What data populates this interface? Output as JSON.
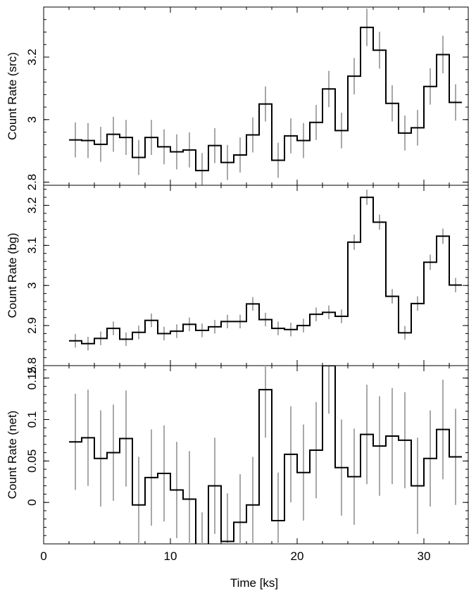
{
  "chart_data": [
    {
      "type": "line",
      "step": true,
      "ylabel": "Count Rate (src)",
      "xlim": [
        0,
        33.5
      ],
      "ylim": [
        2.79,
        3.36
      ],
      "xticks": [
        0,
        10,
        20,
        30
      ],
      "yticks": [
        2.8,
        3,
        3.2
      ],
      "ytick_labels": [
        "2.8",
        "3",
        "3.2"
      ],
      "bin_edges": [
        2,
        3,
        4,
        5,
        6,
        7,
        8,
        9,
        10,
        11,
        12,
        13,
        14,
        15,
        16,
        17,
        18,
        19,
        20,
        21,
        22,
        23,
        24,
        25,
        26,
        27,
        28,
        29,
        30,
        31,
        32,
        33
      ],
      "values": [
        2.935,
        2.933,
        2.921,
        2.953,
        2.943,
        2.879,
        2.943,
        2.913,
        2.897,
        2.903,
        2.837,
        2.917,
        2.863,
        2.887,
        2.951,
        3.05,
        2.87,
        2.948,
        2.933,
        2.991,
        3.098,
        2.965,
        3.139,
        3.295,
        3.222,
        3.052,
        2.957,
        2.974,
        3.106,
        3.208,
        3.055
      ],
      "errors": [
        0.056,
        0.056,
        0.056,
        0.056,
        0.056,
        0.056,
        0.056,
        0.056,
        0.056,
        0.056,
        0.056,
        0.056,
        0.056,
        0.056,
        0.056,
        0.056,
        0.056,
        0.056,
        0.056,
        0.056,
        0.058,
        0.057,
        0.058,
        0.06,
        0.059,
        0.058,
        0.056,
        0.057,
        0.058,
        0.06,
        0.058
      ]
    },
    {
      "type": "line",
      "step": true,
      "ylabel": "Count Rate (bg)",
      "xlim": [
        0,
        33.5
      ],
      "ylim": [
        2.8,
        3.25
      ],
      "xticks": [
        0,
        10,
        20,
        30
      ],
      "yticks": [
        2.8,
        2.9,
        3,
        3.1,
        3.2
      ],
      "ytick_labels": [
        "2.8",
        "2.9",
        "3",
        "3.1",
        "3.2"
      ],
      "bin_edges": [
        2,
        3,
        4,
        5,
        6,
        7,
        8,
        9,
        10,
        11,
        12,
        13,
        14,
        15,
        16,
        17,
        18,
        19,
        20,
        21,
        22,
        23,
        24,
        25,
        26,
        27,
        28,
        29,
        30,
        31,
        32,
        33
      ],
      "values": [
        2.862,
        2.855,
        2.868,
        2.893,
        2.866,
        2.883,
        2.913,
        2.88,
        2.886,
        2.903,
        2.888,
        2.897,
        2.91,
        2.91,
        2.954,
        2.915,
        2.893,
        2.89,
        2.9,
        2.928,
        2.933,
        2.923,
        3.108,
        3.22,
        3.158,
        2.973,
        2.882,
        2.955,
        3.058,
        3.123,
        3.001
      ],
      "errors": [
        0.017,
        0.017,
        0.017,
        0.017,
        0.017,
        0.017,
        0.017,
        0.017,
        0.017,
        0.017,
        0.017,
        0.017,
        0.017,
        0.017,
        0.017,
        0.017,
        0.017,
        0.017,
        0.017,
        0.017,
        0.017,
        0.017,
        0.019,
        0.019,
        0.019,
        0.018,
        0.017,
        0.018,
        0.019,
        0.019,
        0.018
      ]
    },
    {
      "type": "line",
      "step": true,
      "ylabel": "Count Rate (net)",
      "xlabel": "Time [ks]",
      "xlim": [
        0,
        33.5
      ],
      "ylim": [
        -0.05,
        0.165
      ],
      "xticks": [
        0,
        10,
        20,
        30
      ],
      "xtick_labels": [
        "0",
        "10",
        "20",
        "30"
      ],
      "yticks": [
        0,
        0.05,
        0.1,
        0.15
      ],
      "ytick_labels": [
        "0",
        "0.05",
        "0.1",
        "0.15"
      ],
      "bin_edges": [
        2,
        3,
        4,
        5,
        6,
        7,
        8,
        9,
        10,
        11,
        12,
        13,
        14,
        15,
        16,
        17,
        18,
        19,
        20,
        21,
        22,
        23,
        24,
        25,
        26,
        27,
        28,
        29,
        30,
        31,
        32,
        33
      ],
      "values": [
        0.073,
        0.078,
        0.053,
        0.06,
        0.077,
        -0.003,
        0.03,
        0.035,
        0.015,
        0.004,
        -0.07,
        0.02,
        -0.047,
        -0.024,
        -0.003,
        0.136,
        -0.022,
        0.058,
        0.036,
        0.063,
        0.165,
        0.042,
        0.031,
        0.082,
        0.068,
        0.08,
        0.075,
        0.02,
        0.053,
        0.088,
        0.055
      ],
      "errors": [
        0.058,
        0.058,
        0.058,
        0.058,
        0.058,
        0.058,
        0.058,
        0.058,
        0.058,
        0.058,
        0.058,
        0.058,
        0.058,
        0.058,
        0.058,
        0.058,
        0.058,
        0.058,
        0.058,
        0.058,
        0.058,
        0.058,
        0.058,
        0.06,
        0.06,
        0.058,
        0.058,
        0.058,
        0.058,
        0.06,
        0.058
      ]
    }
  ]
}
